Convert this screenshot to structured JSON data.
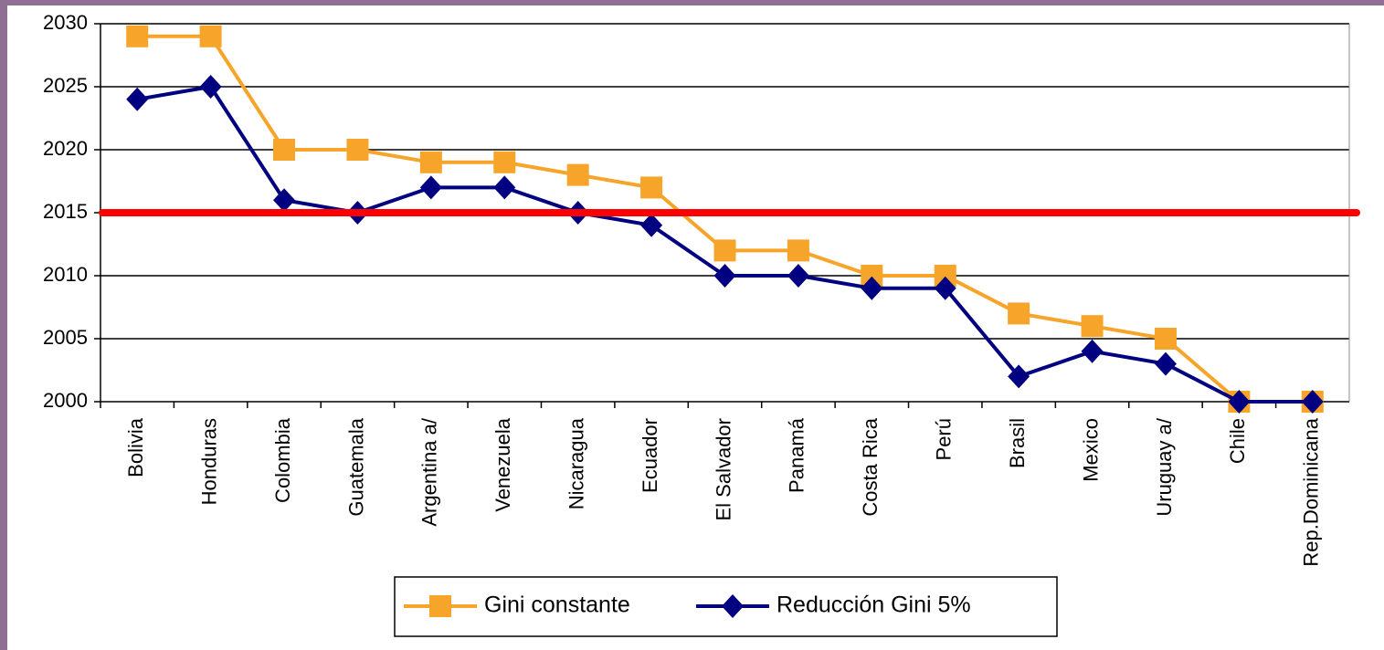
{
  "chart_data": {
    "type": "line",
    "categories": [
      "Bolivia",
      "Honduras",
      "Colombia",
      "Guatemala",
      "Argentina a/",
      "Venezuela",
      "Nicaragua",
      "Ecuador",
      "El Salvador",
      "Panamá",
      "Costa Rica",
      "Perú",
      "Brasil",
      "Mexico",
      "Uruguay a/",
      "Chile",
      "Rep.Dominicana"
    ],
    "series": [
      {
        "name": "Gini constante",
        "color": "#f7a42a",
        "marker": "square",
        "values": [
          2029,
          2029,
          2020,
          2020,
          2019,
          2019,
          2018,
          2017,
          2012,
          2012,
          2010,
          2010,
          2007,
          2006,
          2005,
          2000,
          2000
        ]
      },
      {
        "name": "Reducción Gini 5%",
        "color": "#000080",
        "marker": "diamond",
        "values": [
          2024,
          2025,
          2016,
          2015,
          2017,
          2017,
          2015,
          2014,
          2010,
          2010,
          2009,
          2009,
          2002,
          2004,
          2003,
          2000,
          2000
        ]
      }
    ],
    "reference_line": {
      "value": 2015,
      "color": "#ff0000"
    },
    "ylim": [
      2000,
      2030
    ],
    "yticks": [
      2000,
      2005,
      2010,
      2015,
      2020,
      2025,
      2030
    ],
    "grid": true,
    "legend": "bottom"
  }
}
